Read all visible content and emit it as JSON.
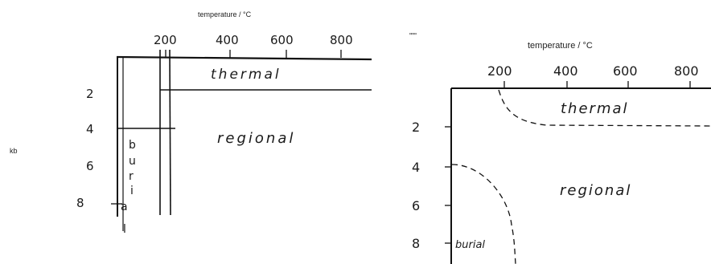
{
  "left_diagram": {
    "x_axis_title": "temperature / °C",
    "y_axis_title": "kb",
    "x_ticks": [
      "200",
      "400",
      "600",
      "800"
    ],
    "y_ticks": [
      "2",
      "4",
      "6",
      "8"
    ],
    "regions": {
      "thermal": "thermal",
      "regional": "regional",
      "burial_letters": [
        "b",
        "u",
        "r",
        "i",
        "a",
        "l"
      ]
    }
  },
  "right_diagram": {
    "corner_mark": "\"\"'",
    "x_axis_title": "temperature / °C",
    "x_ticks": [
      "200",
      "400",
      "600",
      "800"
    ],
    "y_ticks": [
      "2",
      "4",
      "6",
      "8"
    ],
    "regions": {
      "thermal": "thermal",
      "regional": "regional",
      "burial": "burial"
    }
  }
}
